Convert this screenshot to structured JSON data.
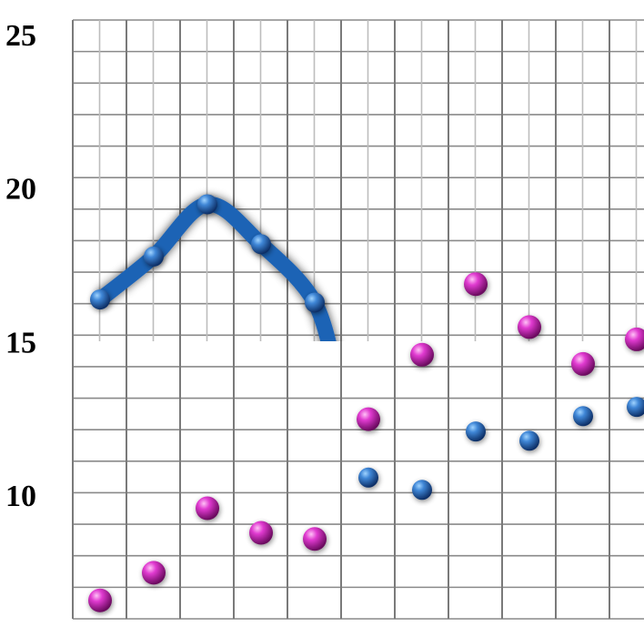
{
  "chart_data": {
    "type": "scatter",
    "title": "",
    "xlabel": "",
    "ylabel": "",
    "ylim": [
      6.0,
      25.5
    ],
    "y_ticks": [
      10,
      15,
      20,
      25
    ],
    "y_tick_labels": [
      "10",
      "15",
      "20",
      "25"
    ],
    "grid": true,
    "x": [
      1,
      2,
      3,
      4,
      5,
      6,
      7,
      8,
      9,
      10,
      11
    ],
    "series": [
      {
        "color": "#1f63b5",
        "marker": "sphere",
        "line_through_first_points": 5,
        "values": [
          16.4,
          17.8,
          19.5,
          18.2,
          16.3,
          10.6,
          10.2,
          12.1,
          11.8,
          12.6,
          12.9
        ]
      },
      {
        "color": "#c21fb4",
        "marker": "sphere",
        "values": [
          6.6,
          7.5,
          9.6,
          8.8,
          8.6,
          12.5,
          14.6,
          16.9,
          15.5,
          14.3,
          15.1
        ]
      }
    ]
  }
}
